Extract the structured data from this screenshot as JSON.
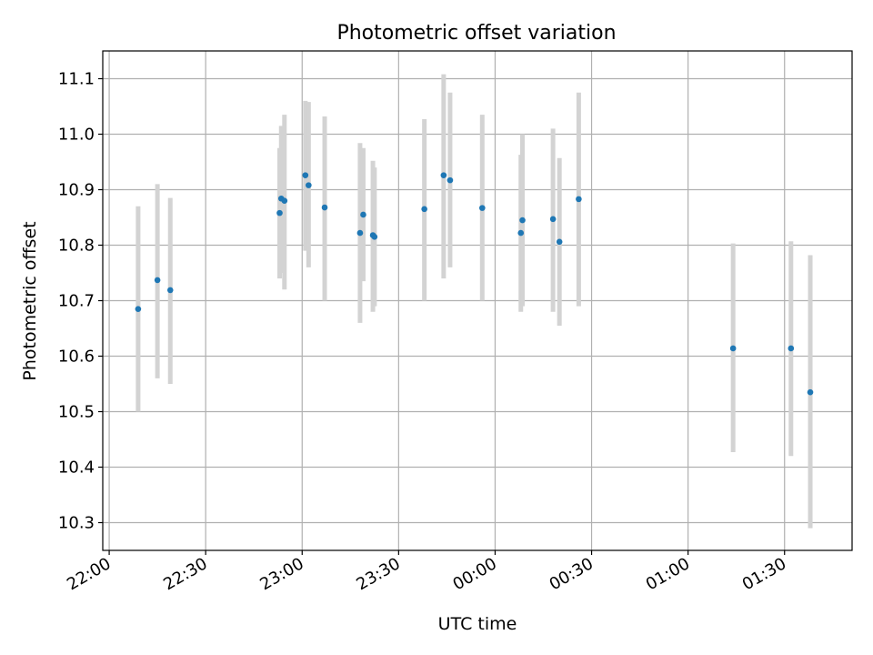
{
  "chart_data": {
    "type": "scatter",
    "title": "Photometric offset variation",
    "xlabel": "UTC time",
    "ylabel": "Photometric offset",
    "x_axis": {
      "kind": "time",
      "start": "2023-01-01T21:58:00",
      "end": "2023-01-02T01:51:00"
    },
    "ylim": [
      10.25,
      11.15
    ],
    "yticks": [
      10.3,
      10.4,
      10.5,
      10.6,
      10.7,
      10.8,
      10.9,
      11.0,
      11.1
    ],
    "ytick_labels": [
      "10.3",
      "10.4",
      "10.5",
      "10.6",
      "10.7",
      "10.8",
      "10.9",
      "11.0",
      "11.1"
    ],
    "xticks": [
      "2023-01-01T22:00:00",
      "2023-01-01T22:30:00",
      "2023-01-01T23:00:00",
      "2023-01-01T23:30:00",
      "2023-01-02T00:00:00",
      "2023-01-02T00:30:00",
      "2023-01-02T01:00:00",
      "2023-01-02T01:30:00"
    ],
    "xtick_labels": [
      "22:00",
      "22:30",
      "23:00",
      "23:30",
      "00:00",
      "00:30",
      "01:00",
      "01:30"
    ],
    "grid": true,
    "colors": {
      "point": "#1f77b4",
      "errorbar": "#d3d3d3",
      "grid": "#b0b0b0"
    },
    "points": [
      {
        "t": "2023-01-01T22:09:00",
        "y": 10.685,
        "lo": 10.5,
        "hi": 10.87
      },
      {
        "t": "2023-01-01T22:15:00",
        "y": 10.737,
        "lo": 10.56,
        "hi": 10.91
      },
      {
        "t": "2023-01-01T22:19:00",
        "y": 10.719,
        "lo": 10.55,
        "hi": 10.885
      },
      {
        "t": "2023-01-01T22:53:00",
        "y": 10.858,
        "lo": 10.74,
        "hi": 10.975
      },
      {
        "t": "2023-01-01T22:53:30",
        "y": 10.884,
        "lo": 10.75,
        "hi": 11.015
      },
      {
        "t": "2023-01-01T22:54:30",
        "y": 10.88,
        "lo": 10.72,
        "hi": 11.035
      },
      {
        "t": "2023-01-01T23:01:00",
        "y": 10.926,
        "lo": 10.79,
        "hi": 11.06
      },
      {
        "t": "2023-01-01T23:02:00",
        "y": 10.908,
        "lo": 10.76,
        "hi": 11.058
      },
      {
        "t": "2023-01-01T23:07:00",
        "y": 10.868,
        "lo": 10.7,
        "hi": 11.032
      },
      {
        "t": "2023-01-01T23:18:00",
        "y": 10.822,
        "lo": 10.66,
        "hi": 10.984
      },
      {
        "t": "2023-01-01T23:19:00",
        "y": 10.855,
        "lo": 10.735,
        "hi": 10.975
      },
      {
        "t": "2023-01-01T23:22:00",
        "y": 10.818,
        "lo": 10.68,
        "hi": 10.952
      },
      {
        "t": "2023-01-01T23:22:30",
        "y": 10.815,
        "lo": 10.69,
        "hi": 10.94
      },
      {
        "t": "2023-01-01T23:38:00",
        "y": 10.865,
        "lo": 10.7,
        "hi": 11.027
      },
      {
        "t": "2023-01-01T23:44:00",
        "y": 10.926,
        "lo": 10.74,
        "hi": 11.108
      },
      {
        "t": "2023-01-01T23:46:00",
        "y": 10.917,
        "lo": 10.76,
        "hi": 11.075
      },
      {
        "t": "2023-01-01T23:56:00",
        "y": 10.867,
        "lo": 10.7,
        "hi": 11.035
      },
      {
        "t": "2023-01-02T00:08:00",
        "y": 10.822,
        "lo": 10.68,
        "hi": 10.963
      },
      {
        "t": "2023-01-02T00:08:30",
        "y": 10.845,
        "lo": 10.69,
        "hi": 11.0
      },
      {
        "t": "2023-01-02T00:18:00",
        "y": 10.847,
        "lo": 10.68,
        "hi": 11.01
      },
      {
        "t": "2023-01-02T00:20:00",
        "y": 10.806,
        "lo": 10.655,
        "hi": 10.957
      },
      {
        "t": "2023-01-02T00:26:00",
        "y": 10.883,
        "lo": 10.69,
        "hi": 11.075
      },
      {
        "t": "2023-01-02T01:14:00",
        "y": 10.614,
        "lo": 10.427,
        "hi": 10.803
      },
      {
        "t": "2023-01-02T01:32:00",
        "y": 10.614,
        "lo": 10.42,
        "hi": 10.807
      },
      {
        "t": "2023-01-02T01:38:00",
        "y": 10.535,
        "lo": 10.29,
        "hi": 10.782
      }
    ]
  }
}
